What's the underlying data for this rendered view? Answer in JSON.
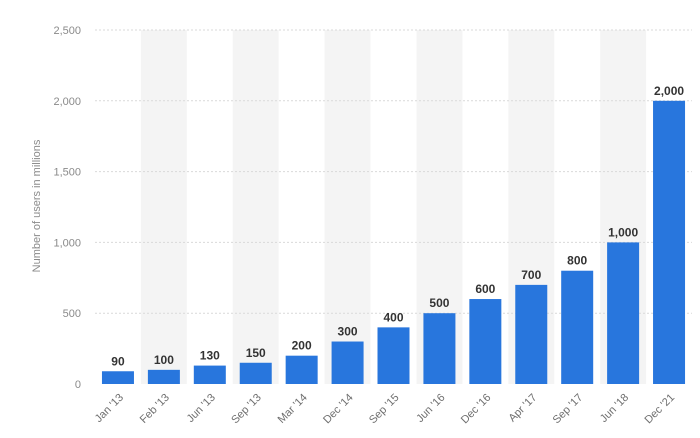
{
  "chart_data": {
    "type": "bar",
    "categories": [
      "Jan '13",
      "Feb '13",
      "Jun '13",
      "Sep '13",
      "Mar '14",
      "Dec '14",
      "Sep '15",
      "Jun '16",
      "Dec '16",
      "Apr '17",
      "Sep '17",
      "Jun '18",
      "Dec '21"
    ],
    "values": [
      90,
      100,
      130,
      150,
      200,
      300,
      400,
      500,
      600,
      700,
      800,
      1000,
      2000
    ],
    "value_labels": [
      "90",
      "100",
      "130",
      "150",
      "200",
      "300",
      "400",
      "500",
      "600",
      "700",
      "800",
      "1,000",
      "2,000"
    ],
    "y_ticks": [
      0,
      500,
      1000,
      1500,
      2000,
      2500
    ],
    "y_tick_labels": [
      "0",
      "500",
      "1,000",
      "1,500",
      "2,000",
      "2,500"
    ],
    "title": "",
    "xlabel": "",
    "ylabel": "Number of users in millions",
    "ylim": [
      0,
      2500
    ],
    "grid": true,
    "colors": {
      "bar": "#2876DD",
      "band": "#F4F4F4",
      "grid": "#d9d9d9"
    }
  }
}
